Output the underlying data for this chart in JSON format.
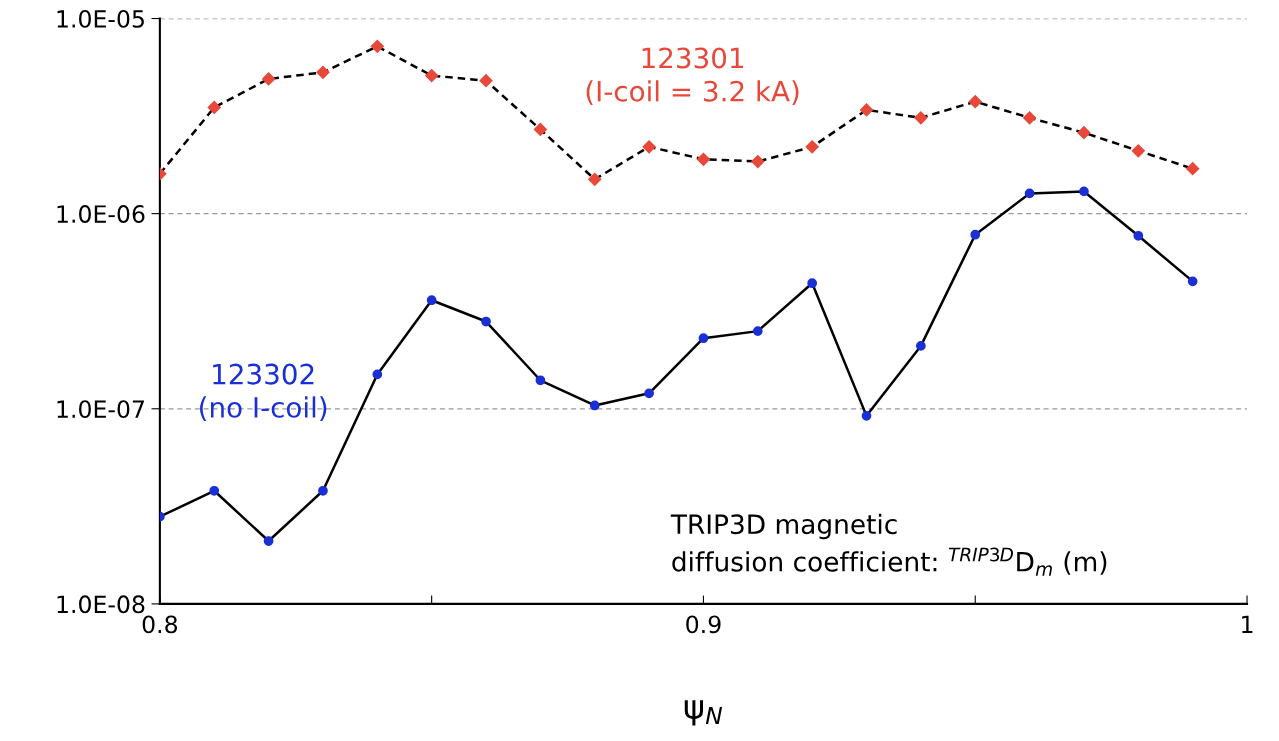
{
  "chart_data": {
    "type": "line",
    "xlabel": "ψ$_{N}$",
    "log": "y",
    "grid": "y",
    "x": [
      0.8,
      0.81,
      0.82,
      0.83,
      0.84,
      0.85,
      0.86,
      0.87,
      0.88,
      0.89,
      0.9,
      0.91,
      0.92,
      0.93,
      0.94,
      0.95,
      0.96,
      0.97,
      0.98,
      0.99
    ],
    "xlim": [
      0.8,
      1.0
    ],
    "xticks": [
      0.8,
      {
        "value": 0.85,
        "label": null
      },
      0.9,
      {
        "value": 0.95,
        "label": null
      },
      1
    ],
    "ylim": [
      1e-08,
      1e-05
    ],
    "yticks": [
      {
        "value": 1e-08,
        "label": "1.0E-08"
      },
      {
        "value": 1e-07,
        "label": "1.0E-07"
      },
      {
        "value": 1e-06,
        "label": "1.0E-06"
      },
      {
        "value": 1e-05,
        "label": "1.0E-05"
      }
    ],
    "series": [
      {
        "name": "123301\n(I-coil = 3.2 kA)",
        "color": "#e8483a",
        "marker": "diamond",
        "line_style": "dashed",
        "values": [
          1.6e-06,
          3.5e-06,
          4.9e-06,
          5.3e-06,
          7.2e-06,
          5.1e-06,
          4.8e-06,
          2.7e-06,
          1.5e-06,
          2.2e-06,
          1.9e-06,
          1.85e-06,
          2.2e-06,
          3.4e-06,
          3.1e-06,
          3.75e-06,
          3.1e-06,
          2.6e-06,
          2.1e-06,
          1.7e-06
        ]
      },
      {
        "name": "123302\n(no I-coil)",
        "color": "#1a2fd6",
        "marker": "circle",
        "line_style": "solid",
        "values": [
          2.8e-08,
          3.8e-08,
          2.1e-08,
          3.8e-08,
          1.5e-07,
          3.6e-07,
          2.8e-07,
          1.4e-07,
          1.04e-07,
          1.2e-07,
          2.3e-07,
          2.5e-07,
          4.4e-07,
          9.2e-08,
          2.1e-07,
          7.8e-07,
          1.27e-06,
          1.3e-06,
          7.7e-07,
          4.5e-07
        ]
      }
    ],
    "annotations": [
      "TRIP3D magnetic\ndiffusion coefficient: $^{TRIP3D}$D$_{m}$ (m)"
    ]
  }
}
